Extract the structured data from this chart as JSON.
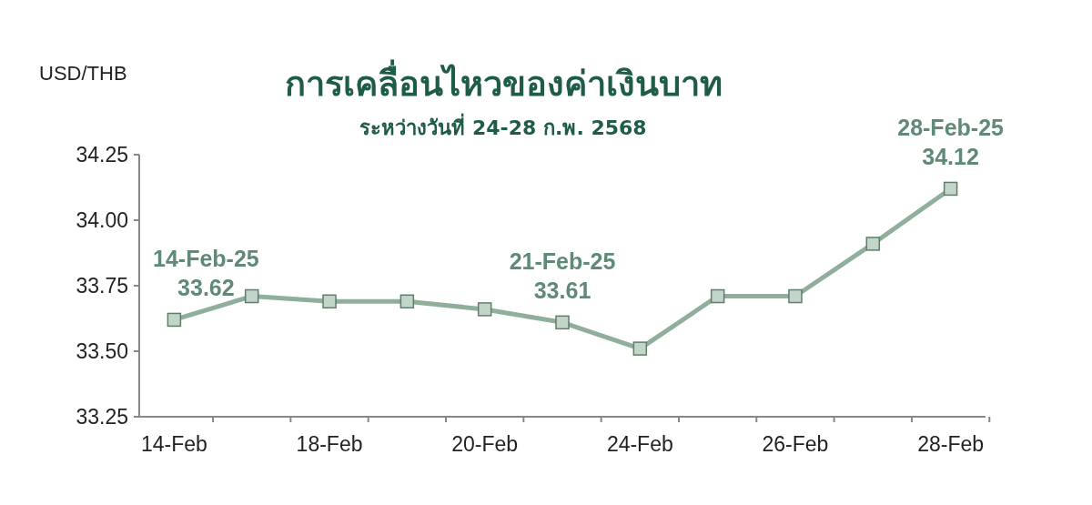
{
  "chart_data": {
    "type": "line",
    "title": "การเคลื่อนไหวของค่าเงินบาท",
    "subtitle": "ระหว่างวันที่ 24-28 ก.พ. 2568",
    "ylabel": "USD/THB",
    "categories": [
      "14-Feb",
      null,
      "18-Feb",
      null,
      "20-Feb",
      null,
      "24-Feb",
      null,
      "26-Feb",
      null,
      "28-Feb"
    ],
    "series": [
      {
        "color": "#8fae9c",
        "values": [
          33.62,
          33.71,
          33.69,
          33.69,
          33.66,
          33.61,
          33.51,
          33.71,
          33.71,
          33.91,
          34.12
        ]
      }
    ],
    "ylim": [
      33.25,
      34.25
    ],
    "yticks": [
      {
        "value": 33.25,
        "label": "33.25"
      },
      {
        "value": 33.5,
        "label": "33.50"
      },
      {
        "value": 33.75,
        "label": "33.75"
      },
      {
        "value": 34,
        "label": "34.00"
      },
      {
        "value": 34.25,
        "label": "34.25"
      }
    ],
    "marker": "square",
    "grid": false,
    "annotations": [
      {
        "text": "14-Feb-25\n33.62",
        "x": "14-Feb",
        "y": 33.62
      },
      {
        "text": "21-Feb-25\n33.61",
        "y": 33.61
      },
      {
        "text": "28-Feb-25\n34.12",
        "x": "28-Feb",
        "y": 34.12
      }
    ]
  }
}
